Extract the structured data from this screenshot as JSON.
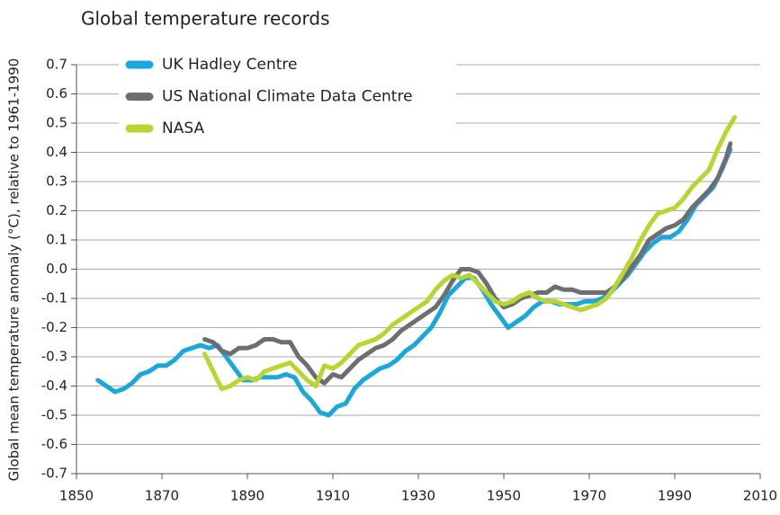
{
  "chart_data": {
    "type": "line",
    "title": "Global temperature records",
    "ylabel": "Global mean temperature anomaly (°C), relative to 1961-1990",
    "xlim": [
      1850,
      2010
    ],
    "xticks": [
      1850,
      1870,
      1890,
      1910,
      1930,
      1950,
      1970,
      1990,
      2010
    ],
    "ylim": [
      -0.7,
      0.7
    ],
    "yticks": [
      0.7,
      0.6,
      0.5,
      0.4,
      0.3,
      0.2,
      0.1,
      {
        "value": 0,
        "label": "0.0"
      },
      -0.1,
      -0.2,
      -0.3,
      -0.4,
      -0.5,
      -0.6,
      -0.7
    ],
    "grid": true,
    "legend": "upper left",
    "series": [
      {
        "name": "UK Hadley Centre",
        "color": "#1aa7dc",
        "x": [
          1855,
          1857,
          1859,
          1861,
          1863,
          1865,
          1867,
          1869,
          1871,
          1873,
          1875,
          1877,
          1879,
          1881,
          1883,
          1885,
          1887,
          1889,
          1891,
          1893,
          1895,
          1897,
          1899,
          1901,
          1903,
          1905,
          1907,
          1909,
          1911,
          1913,
          1915,
          1917,
          1919,
          1921,
          1923,
          1925,
          1927,
          1929,
          1931,
          1933,
          1935,
          1937,
          1939,
          1941,
          1943,
          1945,
          1947,
          1949,
          1951,
          1953,
          1955,
          1957,
          1959,
          1961,
          1963,
          1965,
          1967,
          1969,
          1971,
          1973,
          1975,
          1977,
          1979,
          1981,
          1983,
          1985,
          1987,
          1989,
          1991,
          1993,
          1995,
          1997,
          1999,
          2001,
          2003
        ],
        "values": [
          -0.38,
          -0.4,
          -0.42,
          -0.41,
          -0.39,
          -0.36,
          -0.35,
          -0.33,
          -0.33,
          -0.31,
          -0.28,
          -0.27,
          -0.26,
          -0.27,
          -0.26,
          -0.3,
          -0.34,
          -0.38,
          -0.38,
          -0.37,
          -0.37,
          -0.37,
          -0.36,
          -0.37,
          -0.42,
          -0.45,
          -0.49,
          -0.5,
          -0.47,
          -0.46,
          -0.41,
          -0.38,
          -0.36,
          -0.34,
          -0.33,
          -0.31,
          -0.28,
          -0.26,
          -0.23,
          -0.2,
          -0.15,
          -0.09,
          -0.06,
          -0.03,
          -0.03,
          -0.07,
          -0.12,
          -0.16,
          -0.2,
          -0.18,
          -0.16,
          -0.13,
          -0.11,
          -0.11,
          -0.12,
          -0.12,
          -0.12,
          -0.11,
          -0.11,
          -0.1,
          -0.08,
          -0.05,
          -0.02,
          0.02,
          0.06,
          0.09,
          0.11,
          0.11,
          0.13,
          0.17,
          0.22,
          0.25,
          0.28,
          0.34,
          0.41
        ]
      },
      {
        "name": "US National Climate Data Centre",
        "color": "#6d6e70",
        "x": [
          1880,
          1882,
          1884,
          1886,
          1888,
          1890,
          1892,
          1894,
          1896,
          1898,
          1900,
          1902,
          1904,
          1906,
          1908,
          1910,
          1912,
          1914,
          1916,
          1918,
          1920,
          1922,
          1924,
          1926,
          1928,
          1930,
          1932,
          1934,
          1936,
          1938,
          1940,
          1942,
          1944,
          1946,
          1948,
          1950,
          1952,
          1954,
          1956,
          1958,
          1960,
          1962,
          1964,
          1966,
          1968,
          1970,
          1972,
          1974,
          1976,
          1978,
          1980,
          1982,
          1984,
          1986,
          1988,
          1990,
          1992,
          1994,
          1996,
          1998,
          2000,
          2002,
          2003
        ],
        "values": [
          -0.24,
          -0.25,
          -0.28,
          -0.29,
          -0.27,
          -0.27,
          -0.26,
          -0.24,
          -0.24,
          -0.25,
          -0.25,
          -0.3,
          -0.33,
          -0.37,
          -0.39,
          -0.36,
          -0.37,
          -0.34,
          -0.31,
          -0.29,
          -0.27,
          -0.26,
          -0.24,
          -0.21,
          -0.19,
          -0.17,
          -0.15,
          -0.13,
          -0.09,
          -0.04,
          0,
          0,
          -0.01,
          -0.05,
          -0.1,
          -0.13,
          -0.12,
          -0.1,
          -0.09,
          -0.08,
          -0.08,
          -0.06,
          -0.07,
          -0.07,
          -0.08,
          -0.08,
          -0.08,
          -0.08,
          -0.06,
          -0.03,
          0.01,
          0.05,
          0.1,
          0.12,
          0.14,
          0.15,
          0.17,
          0.21,
          0.24,
          0.27,
          0.31,
          0.38,
          0.43
        ]
      },
      {
        "name": "NASA",
        "color": "#b9d531",
        "x": [
          1880,
          1882,
          1884,
          1886,
          1888,
          1890,
          1892,
          1894,
          1896,
          1898,
          1900,
          1902,
          1904,
          1906,
          1908,
          1910,
          1912,
          1914,
          1916,
          1918,
          1920,
          1922,
          1924,
          1926,
          1928,
          1930,
          1932,
          1934,
          1936,
          1938,
          1940,
          1942,
          1944,
          1946,
          1948,
          1950,
          1952,
          1954,
          1956,
          1958,
          1960,
          1962,
          1964,
          1966,
          1968,
          1970,
          1972,
          1974,
          1976,
          1978,
          1980,
          1982,
          1984,
          1986,
          1988,
          1990,
          1992,
          1994,
          1996,
          1998,
          2000,
          2002,
          2004
        ],
        "values": [
          -0.29,
          -0.35,
          -0.41,
          -0.4,
          -0.38,
          -0.37,
          -0.38,
          -0.35,
          -0.34,
          -0.33,
          -0.32,
          -0.35,
          -0.38,
          -0.4,
          -0.33,
          -0.34,
          -0.32,
          -0.29,
          -0.26,
          -0.25,
          -0.24,
          -0.22,
          -0.19,
          -0.17,
          -0.15,
          -0.13,
          -0.11,
          -0.07,
          -0.04,
          -0.02,
          -0.03,
          -0.02,
          -0.05,
          -0.08,
          -0.11,
          -0.12,
          -0.11,
          -0.09,
          -0.08,
          -0.1,
          -0.11,
          -0.11,
          -0.12,
          -0.13,
          -0.14,
          -0.13,
          -0.12,
          -0.1,
          -0.06,
          -0.01,
          0.04,
          0.1,
          0.15,
          0.19,
          0.2,
          0.21,
          0.24,
          0.28,
          0.31,
          0.34,
          0.41,
          0.47,
          0.52
        ]
      }
    ]
  }
}
